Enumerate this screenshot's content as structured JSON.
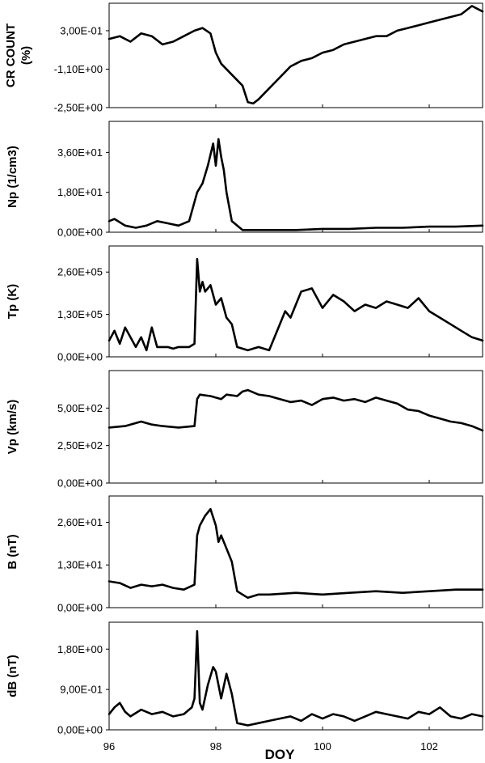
{
  "chart_data": {
    "type": "line",
    "xlabel": "DOY",
    "xlim": [
      96,
      103
    ],
    "xticks": [
      96,
      98,
      100,
      102
    ],
    "xtick_labels": [
      "96",
      "98",
      "100",
      "102"
    ],
    "panels": [
      {
        "id": "cr",
        "ylabel_lines": [
          "CR COUNT",
          "(%)"
        ],
        "ylim": [
          -2.5,
          1.3
        ],
        "yticks": [
          -2.5,
          -1.1,
          0.3
        ],
        "ytick_labels": [
          "-2,50E+00",
          "-1,10E+00",
          "3,00E-01"
        ],
        "x": [
          96.0,
          96.2,
          96.4,
          96.6,
          96.8,
          97.0,
          97.2,
          97.4,
          97.6,
          97.75,
          97.9,
          98.0,
          98.1,
          98.3,
          98.5,
          98.6,
          98.7,
          98.8,
          99.0,
          99.2,
          99.4,
          99.6,
          99.8,
          100.0,
          100.2,
          100.4,
          100.6,
          100.8,
          101.0,
          101.2,
          101.4,
          101.6,
          101.8,
          102.0,
          102.2,
          102.4,
          102.6,
          102.8,
          103.0
        ],
        "y": [
          0.0,
          0.1,
          -0.1,
          0.2,
          0.1,
          -0.2,
          -0.1,
          0.1,
          0.3,
          0.4,
          0.2,
          -0.5,
          -0.9,
          -1.3,
          -1.7,
          -2.3,
          -2.35,
          -2.2,
          -1.8,
          -1.4,
          -1.0,
          -0.8,
          -0.7,
          -0.5,
          -0.4,
          -0.2,
          -0.1,
          0.0,
          0.1,
          0.1,
          0.3,
          0.4,
          0.5,
          0.6,
          0.7,
          0.8,
          0.9,
          1.2,
          1.0
        ]
      },
      {
        "id": "np",
        "ylabel_lines": [
          "Np (1/cm3)"
        ],
        "ylim": [
          0,
          50
        ],
        "yticks": [
          0,
          18,
          36
        ],
        "ytick_labels": [
          "0,00E+00",
          "1,80E+01",
          "3,60E+01"
        ],
        "x": [
          96.0,
          96.1,
          96.3,
          96.5,
          96.7,
          96.9,
          97.1,
          97.3,
          97.5,
          97.65,
          97.75,
          97.85,
          97.95,
          98.0,
          98.05,
          98.1,
          98.15,
          98.2,
          98.3,
          98.4,
          98.5,
          98.7,
          99.0,
          99.5,
          100.0,
          100.5,
          101.0,
          101.5,
          102.0,
          102.5,
          103.0
        ],
        "y": [
          5,
          6,
          3,
          2,
          3,
          5,
          4,
          3,
          5,
          18,
          22,
          30,
          40,
          30,
          42,
          34,
          28,
          18,
          5,
          3,
          1,
          1,
          1,
          1,
          1.5,
          1.5,
          2,
          2,
          2.5,
          2.5,
          3
        ]
      },
      {
        "id": "tp",
        "ylabel_lines": [
          "Tp (K)"
        ],
        "ylim": [
          0,
          340000
        ],
        "yticks": [
          0,
          130000,
          260000
        ],
        "ytick_labels": [
          "0,00E+00",
          "1,30E+05",
          "2,60E+05"
        ],
        "x": [
          96.0,
          96.1,
          96.2,
          96.3,
          96.4,
          96.5,
          96.6,
          96.7,
          96.8,
          96.9,
          97.0,
          97.1,
          97.2,
          97.3,
          97.4,
          97.5,
          97.6,
          97.65,
          97.7,
          97.75,
          97.8,
          97.9,
          98.0,
          98.1,
          98.2,
          98.3,
          98.4,
          98.6,
          98.8,
          99.0,
          99.2,
          99.3,
          99.4,
          99.6,
          99.8,
          100.0,
          100.2,
          100.4,
          100.6,
          100.8,
          101.0,
          101.2,
          101.4,
          101.6,
          101.8,
          102.0,
          102.2,
          102.4,
          102.6,
          102.8,
          103.0
        ],
        "y": [
          50000,
          80000,
          40000,
          90000,
          60000,
          30000,
          60000,
          20000,
          90000,
          30000,
          30000,
          30000,
          25000,
          30000,
          30000,
          30000,
          40000,
          300000,
          200000,
          230000,
          200000,
          220000,
          160000,
          180000,
          120000,
          100000,
          30000,
          20000,
          30000,
          20000,
          100000,
          140000,
          120000,
          200000,
          210000,
          150000,
          190000,
          170000,
          140000,
          160000,
          150000,
          170000,
          160000,
          150000,
          180000,
          140000,
          120000,
          100000,
          80000,
          60000,
          50000
        ]
      },
      {
        "id": "vp",
        "ylabel_lines": [
          "Vp (km/s)"
        ],
        "ylim": [
          0,
          750
        ],
        "yticks": [
          0,
          250,
          500
        ],
        "ytick_labels": [
          "0,00E+00",
          "2,50E+02",
          "5,00E+02"
        ],
        "x": [
          96.0,
          96.3,
          96.6,
          96.8,
          97.0,
          97.3,
          97.6,
          97.65,
          97.7,
          97.9,
          98.1,
          98.2,
          98.4,
          98.5,
          98.6,
          98.8,
          99.0,
          99.2,
          99.4,
          99.6,
          99.8,
          100.0,
          100.2,
          100.4,
          100.6,
          100.8,
          101.0,
          101.2,
          101.4,
          101.6,
          101.8,
          102.0,
          102.2,
          102.4,
          102.6,
          102.8,
          103.0
        ],
        "y": [
          370,
          380,
          410,
          390,
          380,
          370,
          380,
          560,
          590,
          580,
          560,
          590,
          580,
          610,
          620,
          590,
          580,
          560,
          540,
          550,
          520,
          560,
          570,
          550,
          560,
          540,
          570,
          550,
          530,
          490,
          480,
          450,
          430,
          410,
          400,
          380,
          350
        ]
      },
      {
        "id": "b",
        "ylabel_lines": [
          "B (nT)"
        ],
        "ylim": [
          0,
          34
        ],
        "yticks": [
          0,
          13,
          26
        ],
        "ytick_labels": [
          "0,00E+00",
          "1,30E+01",
          "2,60E+01"
        ],
        "x": [
          96.0,
          96.2,
          96.4,
          96.6,
          96.8,
          97.0,
          97.2,
          97.4,
          97.6,
          97.65,
          97.7,
          97.8,
          97.9,
          98.0,
          98.05,
          98.1,
          98.2,
          98.3,
          98.4,
          98.5,
          98.6,
          98.8,
          99.0,
          99.5,
          100.0,
          100.5,
          101.0,
          101.5,
          102.0,
          102.5,
          103.0
        ],
        "y": [
          8,
          7.5,
          6,
          7,
          6.5,
          7,
          6,
          5.5,
          7,
          22,
          25,
          28,
          30,
          25,
          20,
          22,
          18,
          14,
          5,
          4,
          3,
          4,
          4,
          4.5,
          4,
          4.5,
          5,
          4.5,
          5,
          5.5,
          5.5
        ]
      },
      {
        "id": "db",
        "ylabel_lines": [
          "dB (nT)"
        ],
        "ylim": [
          0,
          2.4
        ],
        "yticks": [
          0,
          0.9,
          1.8
        ],
        "ytick_labels": [
          "0,00E+00",
          "9,00E-01",
          "1,80E+00"
        ],
        "x": [
          96.0,
          96.1,
          96.2,
          96.3,
          96.4,
          96.6,
          96.8,
          97.0,
          97.2,
          97.4,
          97.55,
          97.6,
          97.65,
          97.7,
          97.75,
          97.85,
          97.95,
          98.0,
          98.05,
          98.1,
          98.2,
          98.3,
          98.4,
          98.6,
          98.8,
          99.0,
          99.2,
          99.4,
          99.6,
          99.8,
          100.0,
          100.2,
          100.4,
          100.6,
          100.8,
          101.0,
          101.2,
          101.4,
          101.6,
          101.8,
          102.0,
          102.2,
          102.4,
          102.6,
          102.8,
          103.0
        ],
        "y": [
          0.35,
          0.5,
          0.6,
          0.4,
          0.3,
          0.45,
          0.35,
          0.4,
          0.3,
          0.35,
          0.5,
          0.7,
          2.2,
          0.6,
          0.45,
          1.0,
          1.4,
          1.3,
          1.0,
          0.7,
          1.25,
          0.8,
          0.15,
          0.1,
          0.15,
          0.2,
          0.25,
          0.3,
          0.2,
          0.35,
          0.25,
          0.35,
          0.3,
          0.2,
          0.3,
          0.4,
          0.35,
          0.3,
          0.25,
          0.4,
          0.35,
          0.5,
          0.3,
          0.25,
          0.35,
          0.3
        ]
      }
    ]
  }
}
